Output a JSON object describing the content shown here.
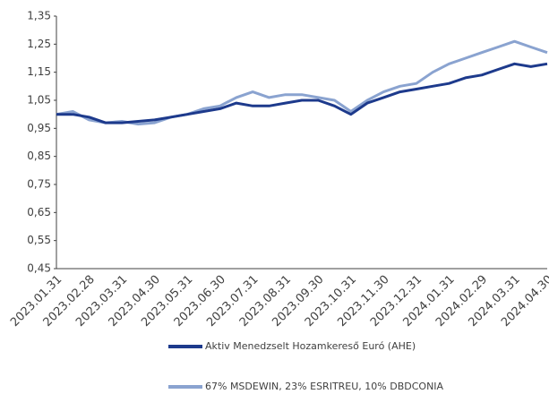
{
  "chart_data": {
    "type": "line",
    "categories": [
      "2023.01.31",
      null,
      "2023.02.28",
      null,
      "2023.03.31",
      null,
      "2023.04.30",
      null,
      "2023.05.31",
      null,
      "2023.06.30",
      null,
      "2023.07.31",
      null,
      "2023.08.31",
      null,
      "2023.09.30",
      null,
      "2023.10.31",
      null,
      "2023.11.30",
      null,
      "2023.12.31",
      null,
      "2024.01.31",
      null,
      "2024.02.29",
      null,
      "2024.03.31",
      null,
      "2024.04.30"
    ],
    "series": [
      {
        "name": "Aktiv Menedzselt Hozamkereső Euró (AHE)",
        "color": "#1d3a8c",
        "values": [
          1.0,
          1.0,
          0.99,
          0.97,
          0.97,
          0.975,
          0.98,
          0.99,
          1.0,
          1.01,
          1.02,
          1.04,
          1.03,
          1.03,
          1.04,
          1.05,
          1.05,
          1.03,
          1.0,
          1.04,
          1.06,
          1.08,
          1.09,
          1.1,
          1.11,
          1.13,
          1.14,
          1.16,
          1.18,
          1.17,
          1.18
        ]
      },
      {
        "name": "67% MSDEWIN, 23% ESRITREU, 10% DBDCONIA",
        "color": "#8aa3d0",
        "values": [
          1.0,
          1.01,
          0.98,
          0.97,
          0.975,
          0.965,
          0.97,
          0.99,
          1.0,
          1.02,
          1.03,
          1.06,
          1.08,
          1.06,
          1.07,
          1.07,
          1.06,
          1.05,
          1.01,
          1.05,
          1.08,
          1.1,
          1.11,
          1.15,
          1.18,
          1.2,
          1.22,
          1.24,
          1.26,
          1.24,
          1.22
        ]
      }
    ],
    "ylim": [
      0.45,
      1.35
    ],
    "yticks": [
      {
        "value": 0.45,
        "label": "0,45"
      },
      {
        "value": 0.55,
        "label": "0,55"
      },
      {
        "value": 0.65,
        "label": "0,65"
      },
      {
        "value": 0.75,
        "label": "0,75"
      },
      {
        "value": 0.85,
        "label": "0,85"
      },
      {
        "value": 0.95,
        "label": "0,95"
      },
      {
        "value": 1.05,
        "label": "1,05"
      },
      {
        "value": 1.15,
        "label": "1,15"
      },
      {
        "value": 1.25,
        "label": "1,25"
      },
      {
        "value": 1.35,
        "label": "1,35"
      }
    ],
    "grid": false
  }
}
